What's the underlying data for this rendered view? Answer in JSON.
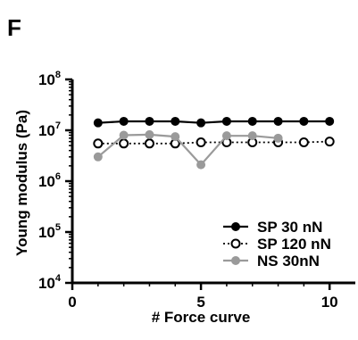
{
  "panel_label": "F",
  "chart_data": {
    "type": "line",
    "xlabel": "# Force curve",
    "ylabel": "Young modulus (Pa)",
    "xlim": [
      0,
      11
    ],
    "ylim": [
      10000,
      100000000
    ],
    "yscale": "log",
    "xticks": [
      0,
      5,
      10
    ],
    "yticks": [
      {
        "base": "10",
        "exp": "4",
        "value": 10000
      },
      {
        "base": "10",
        "exp": "5",
        "value": 100000
      },
      {
        "base": "10",
        "exp": "6",
        "value": 1000000
      },
      {
        "base": "10",
        "exp": "7",
        "value": 10000000
      },
      {
        "base": "10",
        "exp": "8",
        "value": 100000000
      }
    ],
    "legend_position": "bottom-right",
    "grid": false,
    "series": [
      {
        "name": "SP 30 nN",
        "color": "#000000",
        "marker": "filled-circle",
        "line": "solid",
        "x": [
          1,
          2,
          3,
          4,
          5,
          6,
          7,
          8,
          9,
          10
        ],
        "y": [
          14000000,
          15000000,
          15000000,
          15000000,
          14000000,
          15000000,
          15000000,
          15000000,
          15000000,
          15000000
        ]
      },
      {
        "name": "SP 120 nN",
        "color": "#000000",
        "marker": "open-circle",
        "line": "dotted",
        "x": [
          1,
          2,
          3,
          4,
          5,
          6,
          7,
          8,
          9,
          10
        ],
        "y": [
          5500000,
          5500000,
          5500000,
          5500000,
          5800000,
          5800000,
          5800000,
          5800000,
          5800000,
          6000000
        ]
      },
      {
        "name": "NS 30nN",
        "color": "#9a9a9a",
        "marker": "filled-circle",
        "line": "solid",
        "x": [
          1,
          2,
          3,
          4,
          5,
          6,
          7,
          8
        ],
        "y": [
          3000000,
          8000000,
          8200000,
          7500000,
          2100000,
          7800000,
          7800000,
          7000000
        ]
      }
    ]
  }
}
